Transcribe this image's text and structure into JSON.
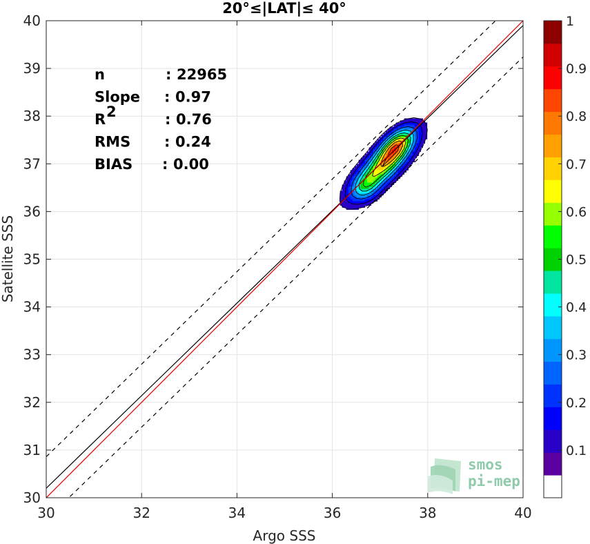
{
  "chart_data": {
    "type": "scatter",
    "title": "20°≤|LAT|≤ 40°",
    "xlabel": "Argo SSS",
    "ylabel": "Satellite SSS",
    "xlim": [
      30,
      40
    ],
    "ylim": [
      30,
      40
    ],
    "xticks": [
      "30",
      "32",
      "34",
      "36",
      "38",
      "40"
    ],
    "yticks": [
      "30",
      "31",
      "32",
      "33",
      "34",
      "35",
      "36",
      "37",
      "38",
      "39",
      "40"
    ],
    "grid": true,
    "stats": [
      {
        "key": "n",
        "sep": ":",
        "value": "22965"
      },
      {
        "key": "Slope",
        "sep": ":",
        "value": "0.97"
      },
      {
        "key": "R",
        "sup": "2",
        "sep": ":",
        "value": "0.76"
      },
      {
        "key": "RMS",
        "sep": ":",
        "value": "0.24"
      },
      {
        "key": "BIAS",
        "sep": ":",
        "value": "0.00"
      }
    ],
    "lines": {
      "identity": {
        "color": "#e00000",
        "x": [
          30,
          40
        ],
        "y": [
          30,
          40
        ]
      },
      "fit": {
        "color": "#000000",
        "x": [
          30,
          40
        ],
        "y": [
          30.2,
          39.9
        ]
      },
      "upper_band": {
        "color": "#000000",
        "style": "dashed",
        "x": [
          30,
          40
        ],
        "y": [
          30.86,
          40.56
        ]
      },
      "lower_band": {
        "color": "#000000",
        "style": "dashed",
        "x": [
          30,
          40
        ],
        "y": [
          29.54,
          39.24
        ]
      }
    },
    "density_peak": {
      "x": 37.35,
      "y": 37.4
    },
    "density_shape": {
      "center": [
        37.05,
        36.95
      ],
      "sigma_major": 0.53,
      "sigma_minor": 0.19,
      "secondary_center": [
        36.7,
        36.5
      ]
    },
    "contour_levels": [
      0.05,
      0.1,
      0.2,
      0.3,
      0.4,
      0.5,
      0.6,
      0.7,
      0.8,
      0.9
    ],
    "colorbar": {
      "range": [
        0,
        1
      ],
      "ticks": [
        "0.1",
        "0.2",
        "0.3",
        "0.4",
        "0.5",
        "0.6",
        "0.7",
        "0.8",
        "0.9",
        "1"
      ],
      "colors": [
        "#ffffff",
        "#5a00a0",
        "#2800c8",
        "#0000ff",
        "#0032ff",
        "#0064ff",
        "#0096ff",
        "#00c8ff",
        "#00ffff",
        "#00e6a0",
        "#00d200",
        "#00ff00",
        "#96ff00",
        "#ffff00",
        "#ffd200",
        "#ffa000",
        "#ff7800",
        "#ff4600",
        "#ff0000",
        "#d20000",
        "#8c0000"
      ]
    },
    "logo": {
      "line1": "smos",
      "line2": "pi-mep"
    }
  }
}
